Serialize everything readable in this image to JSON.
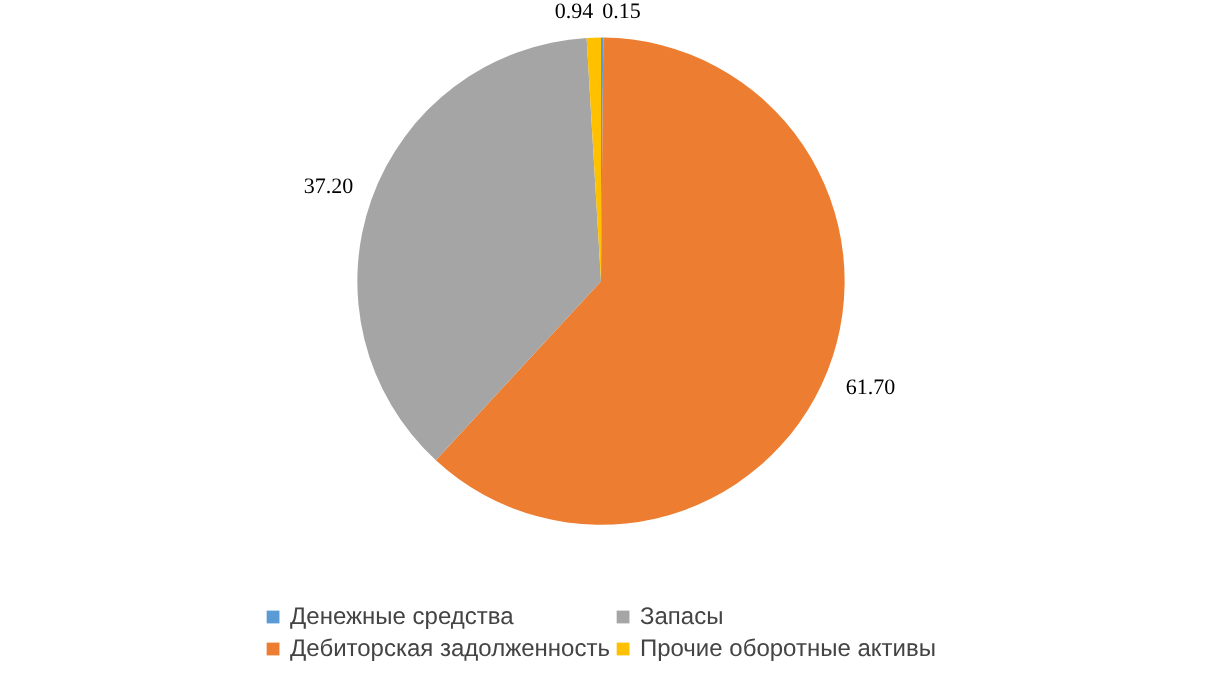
{
  "chart_data": {
    "type": "pie",
    "categories": [
      "Денежные средства",
      "Дебиторская задолженность",
      "Запасы",
      "Прочие оборотные активы"
    ],
    "values": [
      0.15,
      61.7,
      37.2,
      0.94
    ],
    "colors": [
      "#5b9bd5",
      "#ed7d31",
      "#a5a5a5",
      "#ffc000"
    ],
    "value_labels": [
      "0.15",
      "61.70",
      "37.20",
      "0.94"
    ],
    "legend": "bottom"
  }
}
